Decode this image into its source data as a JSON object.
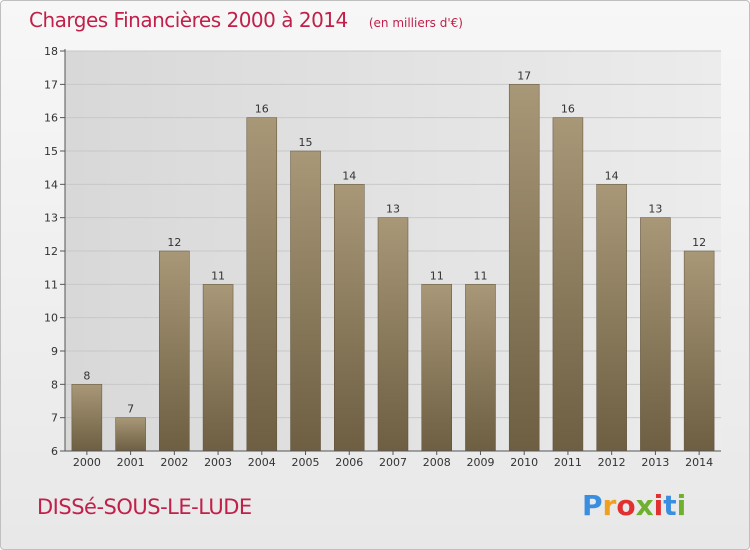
{
  "header": {
    "title": "Charges Financières 2000 à 2014",
    "unit": "(en milliers d'€)"
  },
  "footer": {
    "commune": "DISSé-SOUS-LE-LUDE",
    "logo_letters": [
      "P",
      "r",
      "o",
      "x",
      "i",
      "t",
      "i"
    ],
    "logo_colors": [
      "#3a8ee0",
      "#f0a020",
      "#e03030",
      "#70b030",
      "#e03030",
      "#3a8ee0",
      "#70b030"
    ]
  },
  "colors": {
    "title": "#c0204a",
    "bar_top": "#a89878",
    "bar_bottom": "#6e5e42",
    "grid": "#c8c8c8",
    "axis": "#555555",
    "plot_background": "#e2e2e2"
  },
  "chart_data": {
    "type": "bar",
    "categories": [
      "2000",
      "2001",
      "2002",
      "2003",
      "2004",
      "2005",
      "2006",
      "2007",
      "2008",
      "2009",
      "2010",
      "2011",
      "2012",
      "2013",
      "2014"
    ],
    "values": [
      8,
      7,
      12,
      11,
      16,
      15,
      14,
      13,
      11,
      11,
      17,
      16,
      14,
      13,
      12
    ],
    "ylim": [
      6,
      18
    ],
    "yticks": [
      6,
      7,
      8,
      9,
      10,
      11,
      12,
      13,
      14,
      15,
      16,
      17,
      18
    ],
    "grid": true,
    "data_labels": true
  }
}
